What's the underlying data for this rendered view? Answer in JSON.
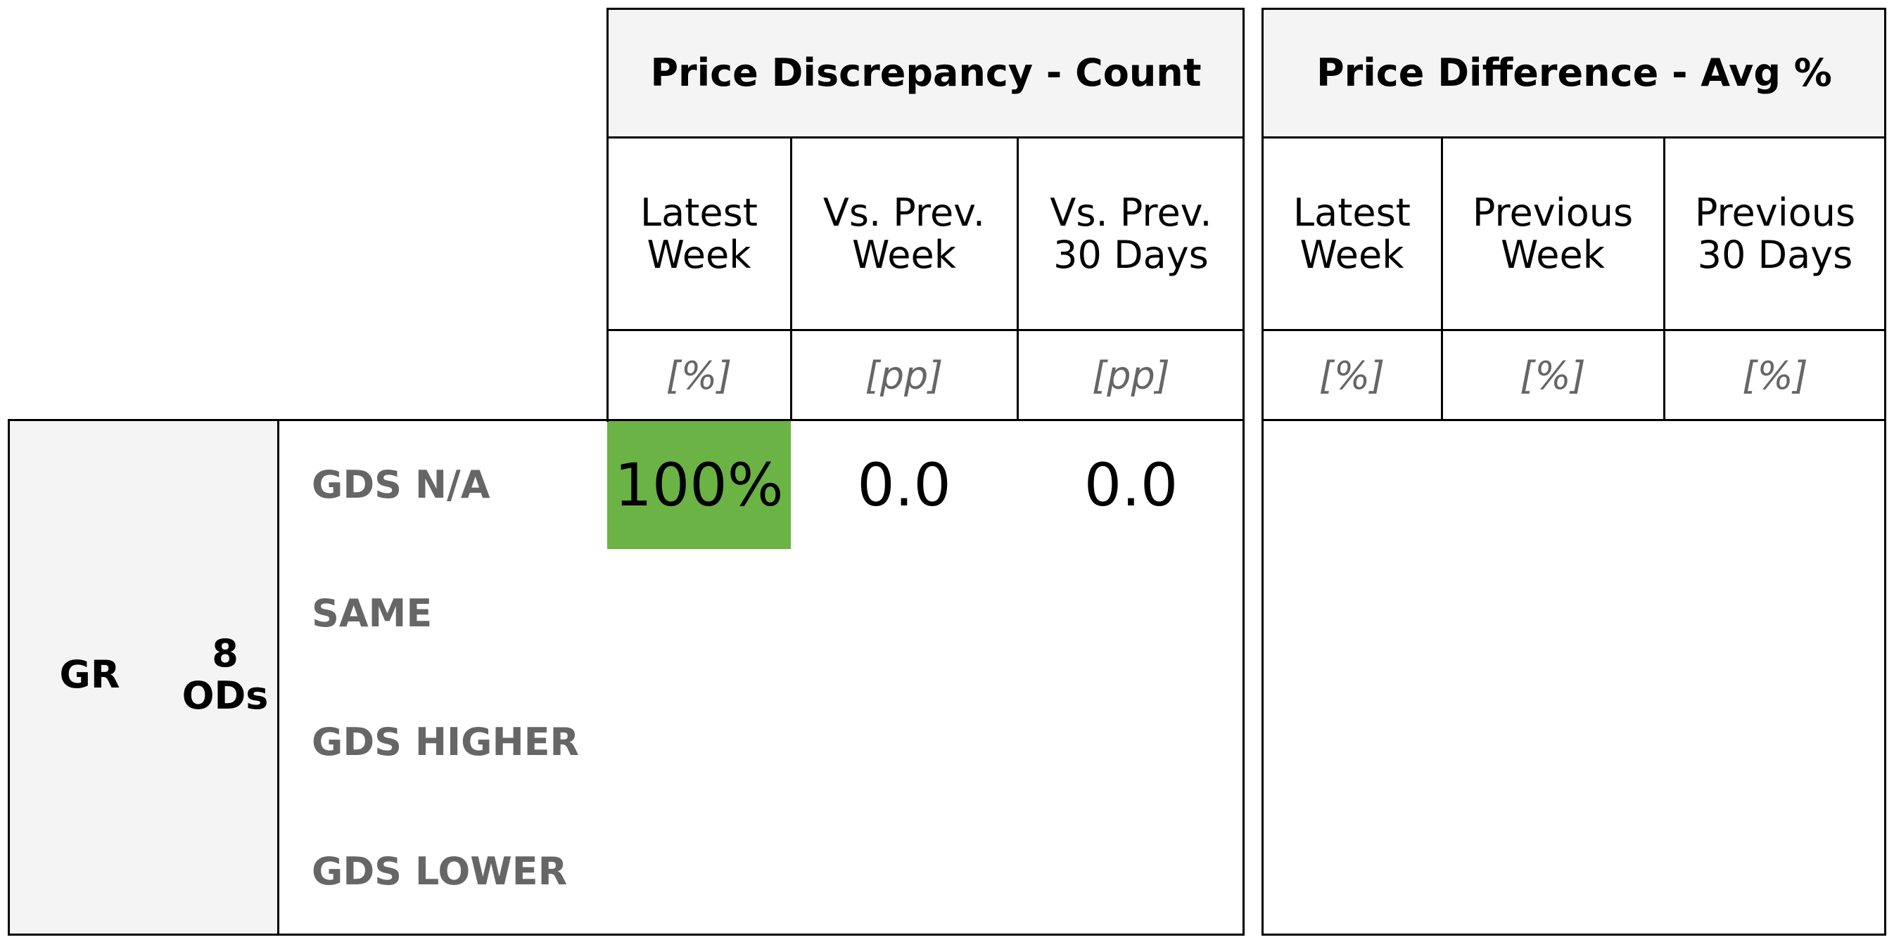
{
  "tables": {
    "count": {
      "title": "Price Discrepancy - Count",
      "columns": [
        {
          "label": "Latest\nWeek",
          "unit": "[%]"
        },
        {
          "label": "Vs. Prev.\nWeek",
          "unit": "[pp]"
        },
        {
          "label": "Vs. Prev.\n30 Days",
          "unit": "[pp]"
        }
      ]
    },
    "avg": {
      "title": "Price Difference - Avg %",
      "columns": [
        {
          "label": "Latest\nWeek",
          "unit": "[%]"
        },
        {
          "label": "Previous\nWeek",
          "unit": "[%]"
        },
        {
          "label": "Previous\n30 Days",
          "unit": "[%]"
        }
      ]
    }
  },
  "group": {
    "market": "GR",
    "ods": "8\nODs"
  },
  "rows": [
    "GDS N/A",
    "SAME",
    "GDS HIGHER",
    "GDS LOWER"
  ],
  "colors": {
    "highlight": "#6bb344",
    "header_bg": "#f4f4f4",
    "label_gray": "#666666"
  },
  "chart_data": {
    "type": "table",
    "title": "",
    "sections": [
      "Price Discrepancy - Count",
      "Price Difference - Avg %"
    ],
    "rows": [
      "GDS N/A",
      "SAME",
      "GDS HIGHER",
      "GDS LOWER"
    ],
    "group": {
      "market": "GR",
      "ods": "8 ODs"
    },
    "values": {
      "GDS N/A": {
        "latest_week": "100%",
        "vs_prev_week": "0.0",
        "vs_prev_30_days": "0.0"
      }
    }
  }
}
